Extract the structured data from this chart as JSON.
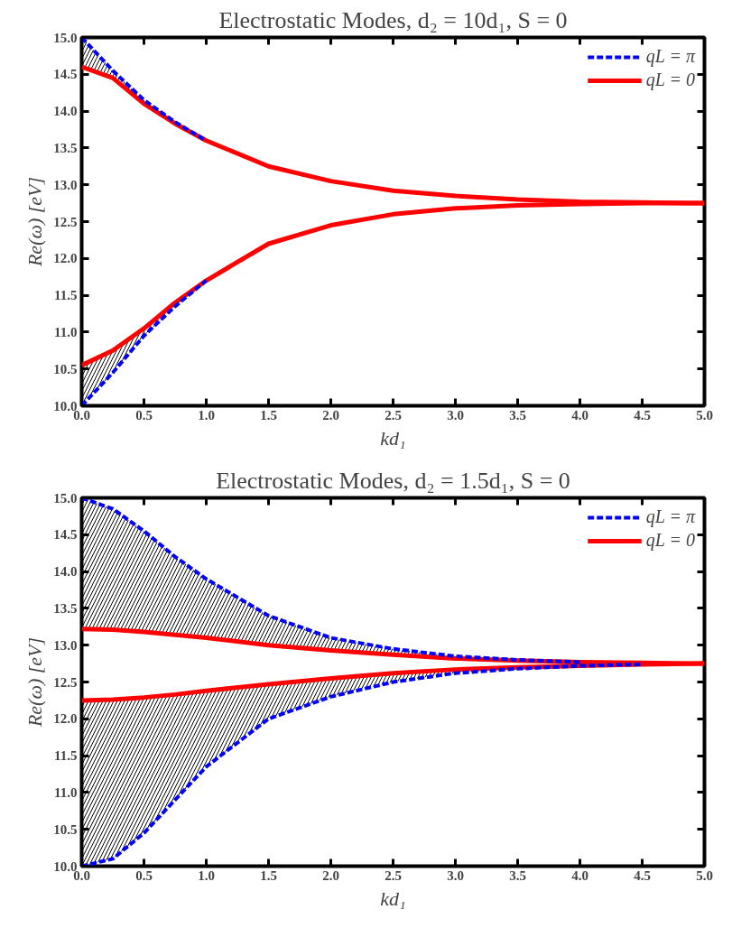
{
  "chart_data": [
    {
      "type": "line",
      "title": "Electrostatic Modes, d₂ = 10d₁, S = 0",
      "xlabel": "kd₁",
      "ylabel": "Re(ω) [eV]",
      "xlim": [
        0,
        5
      ],
      "xticks": [
        {
          "value": 0,
          "label": "0.0"
        },
        0.5,
        {
          "value": 1,
          "label": "1.0"
        },
        1.5,
        {
          "value": 2,
          "label": "2.0"
        },
        2.5,
        {
          "value": 3,
          "label": "3.0"
        },
        3.5,
        {
          "value": 4,
          "label": "4.0"
        },
        4.5,
        {
          "value": 5,
          "label": "5.0"
        }
      ],
      "ylim": [
        10,
        15
      ],
      "yticks": [
        {
          "value": 10,
          "label": "10.0"
        },
        10.5,
        {
          "value": 11,
          "label": "11.0"
        },
        11.5,
        {
          "value": 12,
          "label": "12.0"
        },
        12.5,
        {
          "value": 13,
          "label": "13.0"
        },
        13.5,
        {
          "value": 14,
          "label": "14.0"
        },
        14.5,
        {
          "value": 15,
          "label": "15.0"
        }
      ],
      "grid": false,
      "legend": "top right",
      "series": [
        {
          "name": "qL = π",
          "color": "#0000ff",
          "line_style": "dashed",
          "x": [
            0,
            0.25,
            0.5,
            0.75,
            1
          ],
          "values": [
            15.0,
            14.55,
            14.15,
            13.85,
            13.6
          ],
          "lower": [
            14.6,
            14.45,
            14.1,
            13.83,
            13.6
          ],
          "upper": [
            15.0,
            14.55,
            14.15,
            13.85,
            13.6
          ]
        },
        {
          "color": "#0000ff",
          "line_style": "dashed",
          "x": [
            0,
            0.25,
            0.5,
            0.75,
            1
          ],
          "values": [
            10.0,
            10.45,
            10.95,
            11.35,
            11.7
          ],
          "lower": [
            10.0,
            10.45,
            10.95,
            11.35,
            11.7
          ],
          "upper": [
            10.55,
            10.75,
            11.05,
            11.4,
            11.7
          ]
        },
        {
          "name": "qL = 0",
          "color": "#ff0000",
          "line_style": "solid",
          "x": [
            0,
            0.25,
            0.5,
            0.75,
            1,
            1.5,
            2,
            2.5,
            3,
            3.5,
            4,
            4.5,
            5
          ],
          "values": [
            14.6,
            14.45,
            14.1,
            13.83,
            13.6,
            13.25,
            13.05,
            12.92,
            12.85,
            12.8,
            12.77,
            12.76,
            12.75
          ]
        },
        {
          "color": "#ff0000",
          "line_style": "solid",
          "x": [
            0,
            0.25,
            0.5,
            0.75,
            1,
            1.5,
            2,
            2.5,
            3,
            3.5,
            4,
            4.5,
            5
          ],
          "values": [
            10.55,
            10.75,
            11.05,
            11.4,
            11.7,
            12.2,
            12.45,
            12.6,
            12.68,
            12.72,
            12.74,
            12.75,
            12.75
          ]
        }
      ]
    },
    {
      "type": "line",
      "title": "Electrostatic Modes, d₂ = 1.5d₁, S = 0",
      "xlabel": "kd₁",
      "ylabel": "Re(ω) [eV]",
      "xlim": [
        0,
        5
      ],
      "xticks": [
        {
          "value": 0,
          "label": "0.0"
        },
        0.5,
        {
          "value": 1,
          "label": "1.0"
        },
        1.5,
        {
          "value": 2,
          "label": "2.0"
        },
        2.5,
        {
          "value": 3,
          "label": "3.0"
        },
        3.5,
        {
          "value": 4,
          "label": "4.0"
        },
        4.5,
        {
          "value": 5,
          "label": "5.0"
        }
      ],
      "ylim": [
        10,
        15
      ],
      "yticks": [
        {
          "value": 10,
          "label": "10.0"
        },
        10.5,
        {
          "value": 11,
          "label": "11.0"
        },
        11.5,
        {
          "value": 12,
          "label": "12.0"
        },
        12.5,
        {
          "value": 13,
          "label": "13.0"
        },
        13.5,
        {
          "value": 14,
          "label": "14.0"
        },
        14.5,
        {
          "value": 15,
          "label": "15.0"
        }
      ],
      "grid": false,
      "legend": "top right",
      "series": [
        {
          "name": "qL = π",
          "color": "#0000ff",
          "line_style": "dashed",
          "x": [
            0,
            0.25,
            0.5,
            0.75,
            1,
            1.5,
            2,
            2.5,
            3,
            3.5,
            4
          ],
          "values": [
            15.0,
            14.85,
            14.55,
            14.2,
            13.9,
            13.4,
            13.1,
            12.95,
            12.85,
            12.8,
            12.77
          ],
          "lower": [
            13.22,
            13.21,
            13.18,
            13.14,
            13.1,
            13.0,
            12.93,
            12.87,
            12.82,
            12.79,
            12.77
          ],
          "upper": [
            15.0,
            14.85,
            14.55,
            14.2,
            13.9,
            13.4,
            13.1,
            12.95,
            12.85,
            12.8,
            12.77
          ]
        },
        {
          "color": "#0000ff",
          "line_style": "dashed",
          "x": [
            0,
            0.25,
            0.5,
            0.75,
            1,
            1.5,
            2,
            2.5,
            3,
            3.5,
            4,
            4.5
          ],
          "values": [
            10.0,
            10.1,
            10.45,
            10.9,
            11.35,
            12.0,
            12.3,
            12.5,
            12.62,
            12.68,
            12.72,
            12.74
          ],
          "lower": [
            10.0,
            10.1,
            10.45,
            10.9,
            11.35,
            12.0,
            12.3,
            12.5,
            12.62,
            12.68,
            12.72,
            12.74
          ],
          "upper": [
            12.25,
            12.26,
            12.29,
            12.33,
            12.38,
            12.47,
            12.55,
            12.62,
            12.67,
            12.7,
            12.72,
            12.74
          ]
        },
        {
          "name": "qL = 0",
          "color": "#ff0000",
          "line_style": "solid",
          "x": [
            0,
            0.25,
            0.5,
            0.75,
            1,
            1.5,
            2,
            2.5,
            3,
            3.5,
            4,
            4.5,
            5
          ],
          "values": [
            13.22,
            13.21,
            13.18,
            13.14,
            13.1,
            13.0,
            12.93,
            12.87,
            12.82,
            12.79,
            12.77,
            12.76,
            12.75
          ]
        },
        {
          "color": "#ff0000",
          "line_style": "solid",
          "x": [
            0,
            0.25,
            0.5,
            0.75,
            1,
            1.5,
            2,
            2.5,
            3,
            3.5,
            4,
            4.5,
            5
          ],
          "values": [
            12.25,
            12.26,
            12.29,
            12.33,
            12.38,
            12.47,
            12.55,
            12.62,
            12.67,
            12.7,
            12.72,
            12.74,
            12.75
          ]
        }
      ]
    }
  ]
}
